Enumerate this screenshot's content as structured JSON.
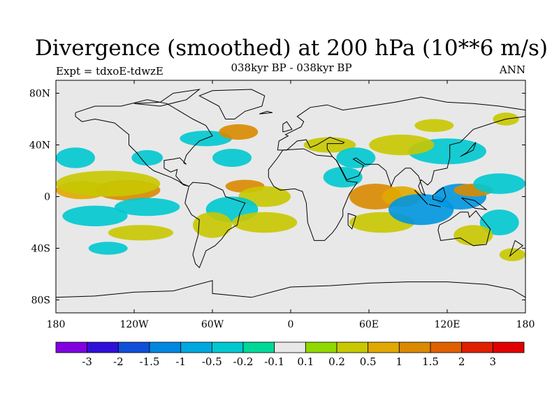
{
  "title": "Divergence (smoothed) at 200 hPa (10**6 m/s)",
  "subtitle": "038kyr BP - 038kyr BP",
  "left_label": "Expt = tdxoE-tdwzE",
  "right_label": "ANN",
  "colors": {
    "background_land_sea": "#e8e8e8",
    "coast": "#000000"
  },
  "map": {
    "lon_range": [
      -180,
      180
    ],
    "lat_range": [
      -90,
      90
    ],
    "x_ticks": [
      {
        "value": -180,
        "label": "180"
      },
      {
        "value": -120,
        "label": "120W"
      },
      {
        "value": -60,
        "label": "60W"
      },
      {
        "value": 0,
        "label": "0"
      },
      {
        "value": 60,
        "label": "60E"
      },
      {
        "value": 120,
        "label": "120E"
      },
      {
        "value": 180,
        "label": "180"
      }
    ],
    "y_ticks": [
      {
        "value": 80,
        "label": "80N"
      },
      {
        "value": 40,
        "label": "40N"
      },
      {
        "value": 0,
        "label": "0"
      },
      {
        "value": -40,
        "label": "40S"
      },
      {
        "value": -80,
        "label": "80S"
      }
    ],
    "field_patches": [
      {
        "lon": -160,
        "lat": 5,
        "rlon": 20,
        "rlat": 7,
        "color": "#e0a800"
      },
      {
        "lon": -125,
        "lat": 5,
        "rlon": 25,
        "rlat": 8,
        "color": "#d98a00"
      },
      {
        "lon": -140,
        "lat": 10,
        "rlon": 40,
        "rlat": 10,
        "color": "#c8c800"
      },
      {
        "lon": -150,
        "lat": -15,
        "rlon": 25,
        "rlat": 8,
        "color": "#00c8d0"
      },
      {
        "lon": -110,
        "lat": -8,
        "rlon": 25,
        "rlat": 7,
        "color": "#00c8d0"
      },
      {
        "lon": -165,
        "lat": 30,
        "rlon": 15,
        "rlat": 8,
        "color": "#00c8d0"
      },
      {
        "lon": -110,
        "lat": 30,
        "rlon": 12,
        "rlat": 6,
        "color": "#00c8d0"
      },
      {
        "lon": -65,
        "lat": 45,
        "rlon": 20,
        "rlat": 6,
        "color": "#00c8d0"
      },
      {
        "lon": -40,
        "lat": 50,
        "rlon": 15,
        "rlat": 6,
        "color": "#d98a00"
      },
      {
        "lon": -45,
        "lat": 30,
        "rlon": 15,
        "rlat": 7,
        "color": "#00c8d0"
      },
      {
        "lon": -35,
        "lat": 8,
        "rlon": 15,
        "rlat": 5,
        "color": "#d98a00"
      },
      {
        "lon": -20,
        "lat": 0,
        "rlon": 20,
        "rlat": 8,
        "color": "#c8c800"
      },
      {
        "lon": -45,
        "lat": -10,
        "rlon": 20,
        "rlat": 10,
        "color": "#00c8d0"
      },
      {
        "lon": -20,
        "lat": -20,
        "rlon": 25,
        "rlat": 8,
        "color": "#c8c800"
      },
      {
        "lon": -60,
        "lat": -22,
        "rlon": 15,
        "rlat": 10,
        "color": "#c8c800"
      },
      {
        "lon": -115,
        "lat": -28,
        "rlon": 25,
        "rlat": 6,
        "color": "#c8c800"
      },
      {
        "lon": -140,
        "lat": -40,
        "rlon": 15,
        "rlat": 5,
        "color": "#00c8d0"
      },
      {
        "lon": 30,
        "lat": 40,
        "rlon": 20,
        "rlat": 6,
        "color": "#c8c800"
      },
      {
        "lon": 40,
        "lat": 15,
        "rlon": 15,
        "rlat": 8,
        "color": "#00c8d0"
      },
      {
        "lon": 50,
        "lat": 30,
        "rlon": 15,
        "rlat": 8,
        "color": "#00c8d0"
      },
      {
        "lon": 65,
        "lat": 0,
        "rlon": 20,
        "rlat": 10,
        "color": "#d98a00"
      },
      {
        "lon": 85,
        "lat": 0,
        "rlon": 15,
        "rlat": 8,
        "color": "#e0a800"
      },
      {
        "lon": 70,
        "lat": -20,
        "rlon": 25,
        "rlat": 8,
        "color": "#c8c800"
      },
      {
        "lon": 100,
        "lat": -10,
        "rlon": 25,
        "rlat": 12,
        "color": "#0096e0"
      },
      {
        "lon": 130,
        "lat": 0,
        "rlon": 20,
        "rlat": 10,
        "color": "#0096e0"
      },
      {
        "lon": 140,
        "lat": 5,
        "rlon": 15,
        "rlat": 5,
        "color": "#d98a00"
      },
      {
        "lon": 160,
        "lat": 10,
        "rlon": 20,
        "rlat": 8,
        "color": "#00c8d0"
      },
      {
        "lon": 120,
        "lat": 35,
        "rlon": 30,
        "rlat": 10,
        "color": "#00c8d0"
      },
      {
        "lon": 85,
        "lat": 40,
        "rlon": 25,
        "rlat": 8,
        "color": "#c8c800"
      },
      {
        "lon": 160,
        "lat": -20,
        "rlon": 15,
        "rlat": 10,
        "color": "#00c8d0"
      },
      {
        "lon": 140,
        "lat": -30,
        "rlon": 15,
        "rlat": 8,
        "color": "#c8c800"
      },
      {
        "lon": 170,
        "lat": -45,
        "rlon": 10,
        "rlat": 5,
        "color": "#c8c800"
      },
      {
        "lon": 110,
        "lat": 55,
        "rlon": 15,
        "rlat": 5,
        "color": "#c8c800"
      },
      {
        "lon": 165,
        "lat": 60,
        "rlon": 10,
        "rlat": 5,
        "color": "#c8c800"
      }
    ],
    "coastlines": [
      [
        [
          -165,
          65
        ],
        [
          -150,
          70
        ],
        [
          -130,
          70
        ],
        [
          -110,
          75
        ],
        [
          -95,
          72
        ],
        [
          -80,
          63
        ],
        [
          -75,
          60
        ],
        [
          -65,
          55
        ],
        [
          -60,
          47
        ],
        [
          -70,
          43
        ],
        [
          -75,
          38
        ],
        [
          -80,
          32
        ],
        [
          -82,
          26
        ],
        [
          -80,
          25
        ],
        [
          -85,
          30
        ],
        [
          -90,
          29
        ],
        [
          -97,
          28
        ],
        [
          -97,
          22
        ],
        [
          -92,
          19
        ],
        [
          -87,
          21
        ],
        [
          -88,
          16
        ],
        [
          -83,
          10
        ],
        [
          -78,
          8
        ],
        [
          -82,
          9
        ],
        [
          -86,
          12
        ],
        [
          -92,
          15
        ],
        [
          -105,
          20
        ],
        [
          -110,
          24
        ],
        [
          -115,
          30
        ],
        [
          -118,
          34
        ],
        [
          -124,
          40
        ],
        [
          -124,
          48
        ],
        [
          -135,
          57
        ],
        [
          -150,
          60
        ],
        [
          -160,
          58
        ],
        [
          -165,
          62
        ],
        [
          -165,
          65
        ]
      ],
      [
        [
          -78,
          8
        ],
        [
          -75,
          11
        ],
        [
          -63,
          10
        ],
        [
          -52,
          5
        ],
        [
          -50,
          0
        ],
        [
          -35,
          -5
        ],
        [
          -39,
          -13
        ],
        [
          -41,
          -22
        ],
        [
          -48,
          -26
        ],
        [
          -53,
          -33
        ],
        [
          -58,
          -38
        ],
        [
          -65,
          -42
        ],
        [
          -68,
          -50
        ],
        [
          -70,
          -55
        ],
        [
          -73,
          -52
        ],
        [
          -75,
          -45
        ],
        [
          -73,
          -37
        ],
        [
          -71,
          -30
        ],
        [
          -70,
          -18
        ],
        [
          -76,
          -14
        ],
        [
          -81,
          -5
        ],
        [
          -80,
          0
        ],
        [
          -78,
          8
        ]
      ],
      [
        [
          -50,
          60
        ],
        [
          -43,
          60
        ],
        [
          -35,
          66
        ],
        [
          -22,
          70
        ],
        [
          -20,
          78
        ],
        [
          -30,
          83
        ],
        [
          -60,
          82
        ],
        [
          -70,
          78
        ],
        [
          -55,
          70
        ],
        [
          -50,
          60
        ]
      ],
      [
        [
          -17,
          15
        ],
        [
          -17,
          21
        ],
        [
          -10,
          30
        ],
        [
          -6,
          36
        ],
        [
          10,
          37
        ],
        [
          20,
          32
        ],
        [
          32,
          31
        ],
        [
          35,
          28
        ],
        [
          43,
          12
        ],
        [
          51,
          11
        ],
        [
          45,
          2
        ],
        [
          40,
          -10
        ],
        [
          40,
          -15
        ],
        [
          35,
          -24
        ],
        [
          32,
          -28
        ],
        [
          26,
          -34
        ],
        [
          18,
          -34
        ],
        [
          13,
          -20
        ],
        [
          12,
          -5
        ],
        [
          9,
          4
        ],
        [
          3,
          6
        ],
        [
          -8,
          5
        ],
        [
          -13,
          8
        ],
        [
          -17,
          15
        ]
      ],
      [
        [
          -10,
          36
        ],
        [
          -9,
          43
        ],
        [
          -2,
          47
        ],
        [
          -4,
          48
        ],
        [
          2,
          51
        ],
        [
          8,
          54
        ],
        [
          10,
          58
        ],
        [
          5,
          62
        ],
        [
          15,
          69
        ],
        [
          28,
          71
        ],
        [
          40,
          67
        ],
        [
          60,
          70
        ],
        [
          80,
          73
        ],
        [
          100,
          77
        ],
        [
          120,
          73
        ],
        [
          140,
          72
        ],
        [
          160,
          70
        ],
        [
          180,
          67
        ],
        [
          180,
          62
        ],
        [
          165,
          60
        ],
        [
          155,
          57
        ],
        [
          140,
          52
        ],
        [
          130,
          42
        ],
        [
          122,
          40
        ],
        [
          122,
          30
        ],
        [
          120,
          22
        ],
        [
          110,
          20
        ],
        [
          108,
          12
        ],
        [
          105,
          9
        ],
        [
          100,
          13
        ],
        [
          98,
          8
        ],
        [
          100,
          3
        ],
        [
          103,
          1
        ],
        [
          98,
          16
        ],
        [
          92,
          22
        ],
        [
          88,
          22
        ],
        [
          80,
          15
        ],
        [
          77,
          8
        ],
        [
          73,
          20
        ],
        [
          67,
          25
        ],
        [
          57,
          25
        ],
        [
          50,
          30
        ],
        [
          48,
          29
        ],
        [
          56,
          24
        ],
        [
          52,
          16
        ],
        [
          43,
          13
        ],
        [
          39,
          21
        ],
        [
          35,
          28
        ],
        [
          32,
          31
        ],
        [
          28,
          37
        ],
        [
          28,
          41
        ],
        [
          40,
          41
        ],
        [
          41,
          42
        ],
        [
          30,
          46
        ],
        [
          20,
          40
        ],
        [
          15,
          38
        ],
        [
          12,
          44
        ],
        [
          5,
          43
        ],
        [
          -3,
          36
        ],
        [
          -10,
          36
        ]
      ],
      [
        [
          114,
          -22
        ],
        [
          122,
          -18
        ],
        [
          130,
          -12
        ],
        [
          136,
          -12
        ],
        [
          137,
          -16
        ],
        [
          142,
          -11
        ],
        [
          145,
          -15
        ],
        [
          153,
          -25
        ],
        [
          150,
          -37
        ],
        [
          140,
          -38
        ],
        [
          135,
          -35
        ],
        [
          130,
          -32
        ],
        [
          115,
          -34
        ],
        [
          113,
          -26
        ],
        [
          114,
          -22
        ]
      ],
      [
        [
          95,
          5
        ],
        [
          105,
          -6
        ],
        [
          98,
          2
        ],
        [
          95,
          5
        ]
      ],
      [
        [
          110,
          -7
        ],
        [
          115,
          -8
        ],
        [
          106,
          -6
        ],
        [
          110,
          -7
        ]
      ],
      [
        [
          109,
          1
        ],
        [
          117,
          7
        ],
        [
          119,
          0
        ],
        [
          116,
          -4
        ],
        [
          109,
          -2
        ],
        [
          109,
          1
        ]
      ],
      [
        [
          131,
          -1
        ],
        [
          141,
          -3
        ],
        [
          150,
          -10
        ],
        [
          141,
          -9
        ],
        [
          131,
          -1
        ]
      ],
      [
        [
          130,
          31
        ],
        [
          140,
          36
        ],
        [
          142,
          42
        ],
        [
          140,
          40
        ],
        [
          135,
          34
        ],
        [
          130,
          31
        ]
      ],
      [
        [
          -6,
          50
        ],
        [
          1,
          52
        ],
        [
          -3,
          58
        ],
        [
          -6,
          56
        ],
        [
          -6,
          50
        ]
      ],
      [
        [
          44,
          -13
        ],
        [
          50,
          -15
        ],
        [
          47,
          -25
        ],
        [
          44,
          -22
        ],
        [
          44,
          -13
        ]
      ],
      [
        [
          -180,
          -78
        ],
        [
          -150,
          -77
        ],
        [
          -120,
          -74
        ],
        [
          -90,
          -73
        ],
        [
          -60,
          -65
        ],
        [
          -60,
          -75
        ],
        [
          -30,
          -78
        ],
        [
          0,
          -70
        ],
        [
          30,
          -69
        ],
        [
          60,
          -67
        ],
        [
          90,
          -66
        ],
        [
          120,
          -66
        ],
        [
          150,
          -68
        ],
        [
          170,
          -72
        ],
        [
          180,
          -78
        ]
      ],
      [
        [
          172,
          -34
        ],
        [
          178,
          -38
        ],
        [
          174,
          -41
        ],
        [
          168,
          -46
        ],
        [
          172,
          -34
        ]
      ],
      [
        [
          -24,
          64
        ],
        [
          -14,
          65
        ],
        [
          -18,
          66
        ],
        [
          -24,
          64
        ]
      ],
      [
        [
          -120,
          72
        ],
        [
          -100,
          73
        ],
        [
          -90,
          80
        ],
        [
          -70,
          83
        ],
        [
          -80,
          75
        ],
        [
          -100,
          70
        ],
        [
          -120,
          72
        ]
      ]
    ]
  },
  "colorbar": {
    "colors": [
      "#8000e0",
      "#3010d8",
      "#1050d8",
      "#0088e0",
      "#00a8e0",
      "#00c8d0",
      "#00d898",
      "#e8e8e8",
      "#90d800",
      "#c8c800",
      "#e0a800",
      "#d98a00",
      "#e06000",
      "#e02000",
      "#e00000"
    ],
    "labels": [
      "-3",
      "-2",
      "-1.5",
      "-1",
      "-0.5",
      "-0.2",
      "-0.1",
      "0.1",
      "0.2",
      "0.5",
      "1",
      "1.5",
      "2",
      "3"
    ]
  }
}
